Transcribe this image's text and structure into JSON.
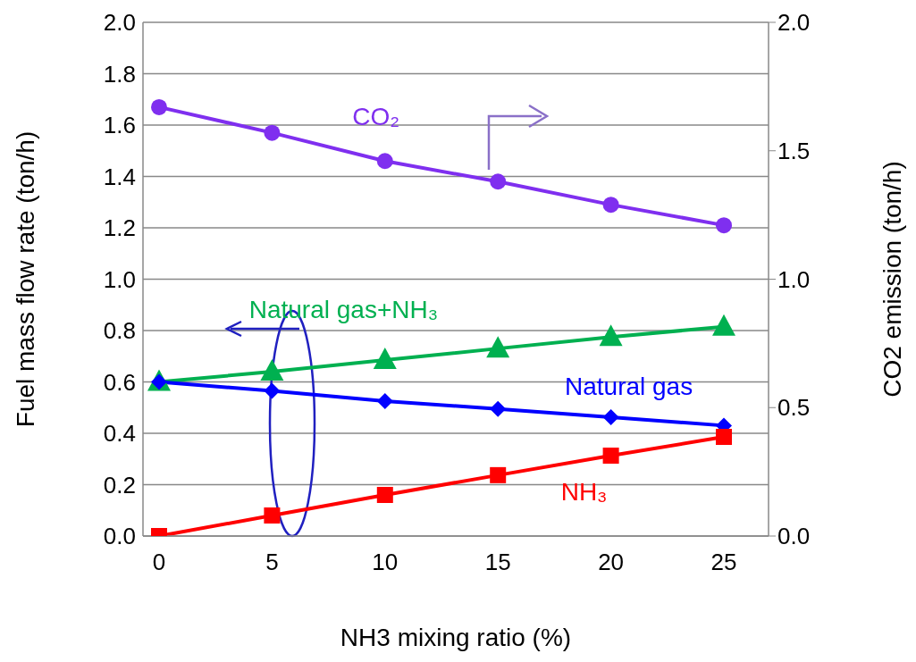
{
  "chart_data": {
    "type": "line",
    "xlabel": "NH3 mixing ratio (%)",
    "ylabel": "Fuel mass flow rate (ton/h)",
    "y2label": "CO2 emission (ton/h)",
    "categories": [
      "0",
      "5",
      "10",
      "15",
      "20",
      "25"
    ],
    "series": [
      {
        "name": "CO₂",
        "color": "#7f2fef",
        "axis": "y2",
        "marker": "circle",
        "values": [
          1.67,
          1.57,
          1.46,
          1.38,
          1.29,
          1.21
        ]
      },
      {
        "name": "Natural gas+NH₃",
        "color": "#00b050",
        "marker": "triangle",
        "values": [
          0.6,
          0.64,
          0.685,
          0.73,
          0.775,
          0.815
        ]
      },
      {
        "name": "Natural gas",
        "color": "#0000ff",
        "marker": "diamond",
        "values": [
          0.6,
          0.565,
          0.525,
          0.495,
          0.463,
          0.43
        ]
      },
      {
        "name": "NH₃",
        "color": "#ff0000",
        "marker": "square",
        "values": [
          0,
          0.08,
          0.16,
          0.237,
          0.313,
          0.386
        ]
      }
    ],
    "ylim": [
      0,
      2
    ],
    "yticks": [
      {
        "value": 0,
        "label": "0.0"
      },
      {
        "value": 0.2,
        "label": "0.2"
      },
      {
        "value": 0.4,
        "label": "0.4"
      },
      {
        "value": 0.6,
        "label": "0.6"
      },
      {
        "value": 0.8,
        "label": "0.8"
      },
      {
        "value": 1,
        "label": "1.0"
      },
      {
        "value": 1.2,
        "label": "1.2"
      },
      {
        "value": 1.4,
        "label": "1.4"
      },
      {
        "value": 1.6,
        "label": "1.6"
      },
      {
        "value": 1.8,
        "label": "1.8"
      },
      {
        "value": 2,
        "label": "2.0"
      }
    ],
    "y2lim": [
      0,
      2
    ],
    "y2ticks": [
      {
        "value": 0,
        "label": "0.0"
      },
      {
        "value": 0.5,
        "label": "0.5"
      },
      {
        "value": 1,
        "label": "1.0"
      },
      {
        "value": 1.5,
        "label": "1.5"
      },
      {
        "value": 2,
        "label": "2.0"
      }
    ],
    "grid": "y",
    "legend": false
  }
}
